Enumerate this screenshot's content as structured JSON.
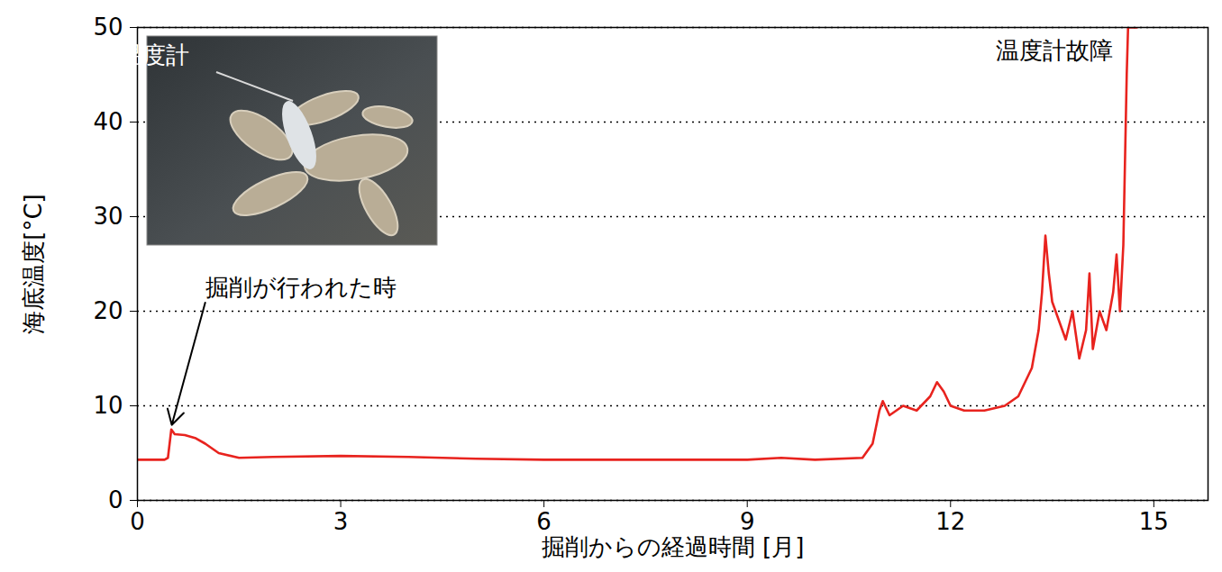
{
  "chart_data": {
    "type": "line",
    "x_label": "掘削からの経過時間 [月]",
    "y_label": "海底温度[°C]",
    "xlim": [
      0,
      15.8
    ],
    "xticks": [
      0,
      3,
      6,
      9,
      12,
      15
    ],
    "ylim": [
      0,
      50
    ],
    "yticks": [
      0,
      10,
      20,
      30,
      40,
      50
    ],
    "grid": true,
    "color": "#e8231e",
    "x": [
      0,
      0.2,
      0.4,
      0.45,
      0.5,
      0.55,
      0.7,
      0.85,
      1.0,
      1.2,
      1.5,
      2.0,
      3.0,
      4.0,
      5.0,
      6.0,
      7.0,
      8.0,
      9.0,
      9.5,
      10.0,
      10.7,
      10.85,
      10.95,
      11.0,
      11.1,
      11.3,
      11.5,
      11.7,
      11.8,
      11.9,
      12.0,
      12.2,
      12.5,
      12.8,
      13.0,
      13.2,
      13.3,
      13.35,
      13.4,
      13.45,
      13.5,
      13.6,
      13.7,
      13.8,
      13.9,
      14.0,
      14.05,
      14.1,
      14.2,
      14.3,
      14.4,
      14.45,
      14.5,
      14.55,
      14.6,
      14.62,
      14.75
    ],
    "values": [
      4.3,
      4.3,
      4.3,
      4.5,
      7.5,
      7.0,
      6.9,
      6.6,
      6.0,
      5.0,
      4.5,
      4.6,
      4.7,
      4.6,
      4.4,
      4.3,
      4.3,
      4.3,
      4.3,
      4.5,
      4.3,
      4.5,
      6.0,
      9.5,
      10.5,
      9.0,
      10.0,
      9.5,
      11.0,
      12.5,
      11.5,
      10.0,
      9.5,
      9.5,
      10.0,
      11.0,
      14.0,
      18.0,
      22.0,
      28.0,
      24.0,
      21.0,
      19.0,
      17.0,
      20.0,
      15.0,
      18.0,
      24.0,
      16.0,
      20.0,
      18.0,
      22.0,
      26.0,
      20.0,
      27.0,
      45.0,
      50.0,
      50.0
    ],
    "annotations": [
      {
        "text": "掘削が行われた時",
        "x": 1.0,
        "y": 22.5,
        "arrow_to": [
          0.5,
          7.8
        ]
      },
      {
        "text": "温度計故障",
        "x": 14.4,
        "y": 47.5
      }
    ],
    "inset": {
      "label": "温度計"
    }
  }
}
